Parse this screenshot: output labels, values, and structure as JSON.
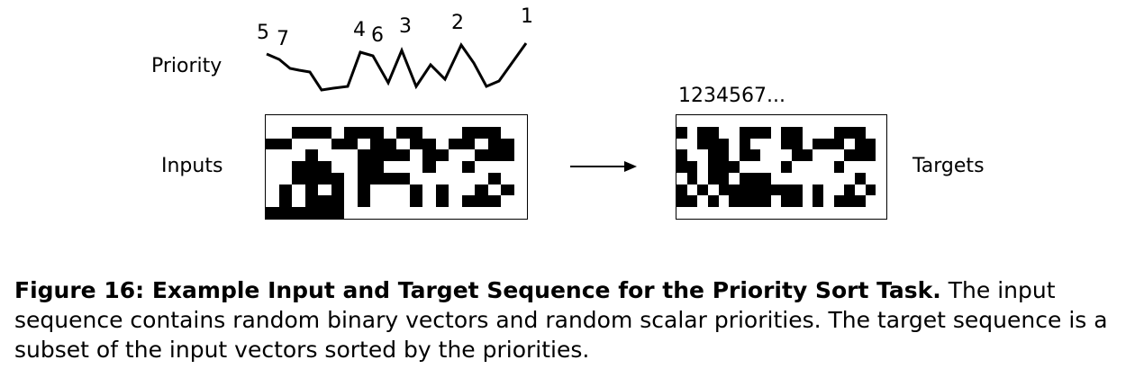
{
  "figure": {
    "label_priority": "Priority",
    "label_inputs": "Inputs",
    "label_targets": "Targets",
    "target_order_label": "1234567...",
    "priority_labels": [
      "5",
      "7",
      "4",
      "6",
      "3",
      "2",
      "1"
    ],
    "input_grid": [
      "00000000000000000000",
      "00111011101100011100",
      "11000110110110110110",
      "00010001111011001110",
      "00111001100010010000",
      "00111101111000000100",
      "01010101000101001010",
      "01011101000101011100",
      "11111100000000000000"
    ],
    "target_grid": [
      "00000000000000000000",
      "10110011101100011100",
      "00111010001101110110",
      "10011011000110001110",
      "11011100001000010000",
      "01011011100000000100",
      "10101111111101001010",
      "11010111101101011100",
      "00000000000000000000"
    ]
  },
  "caption": {
    "bold": "Figure 16: Example Input and Target Sequence for the Priority Sort Task.",
    "text": " The input sequence contains random binary vectors and random scalar priorities. The target sequence is a subset of the input vectors sorted by the priorities."
  }
}
